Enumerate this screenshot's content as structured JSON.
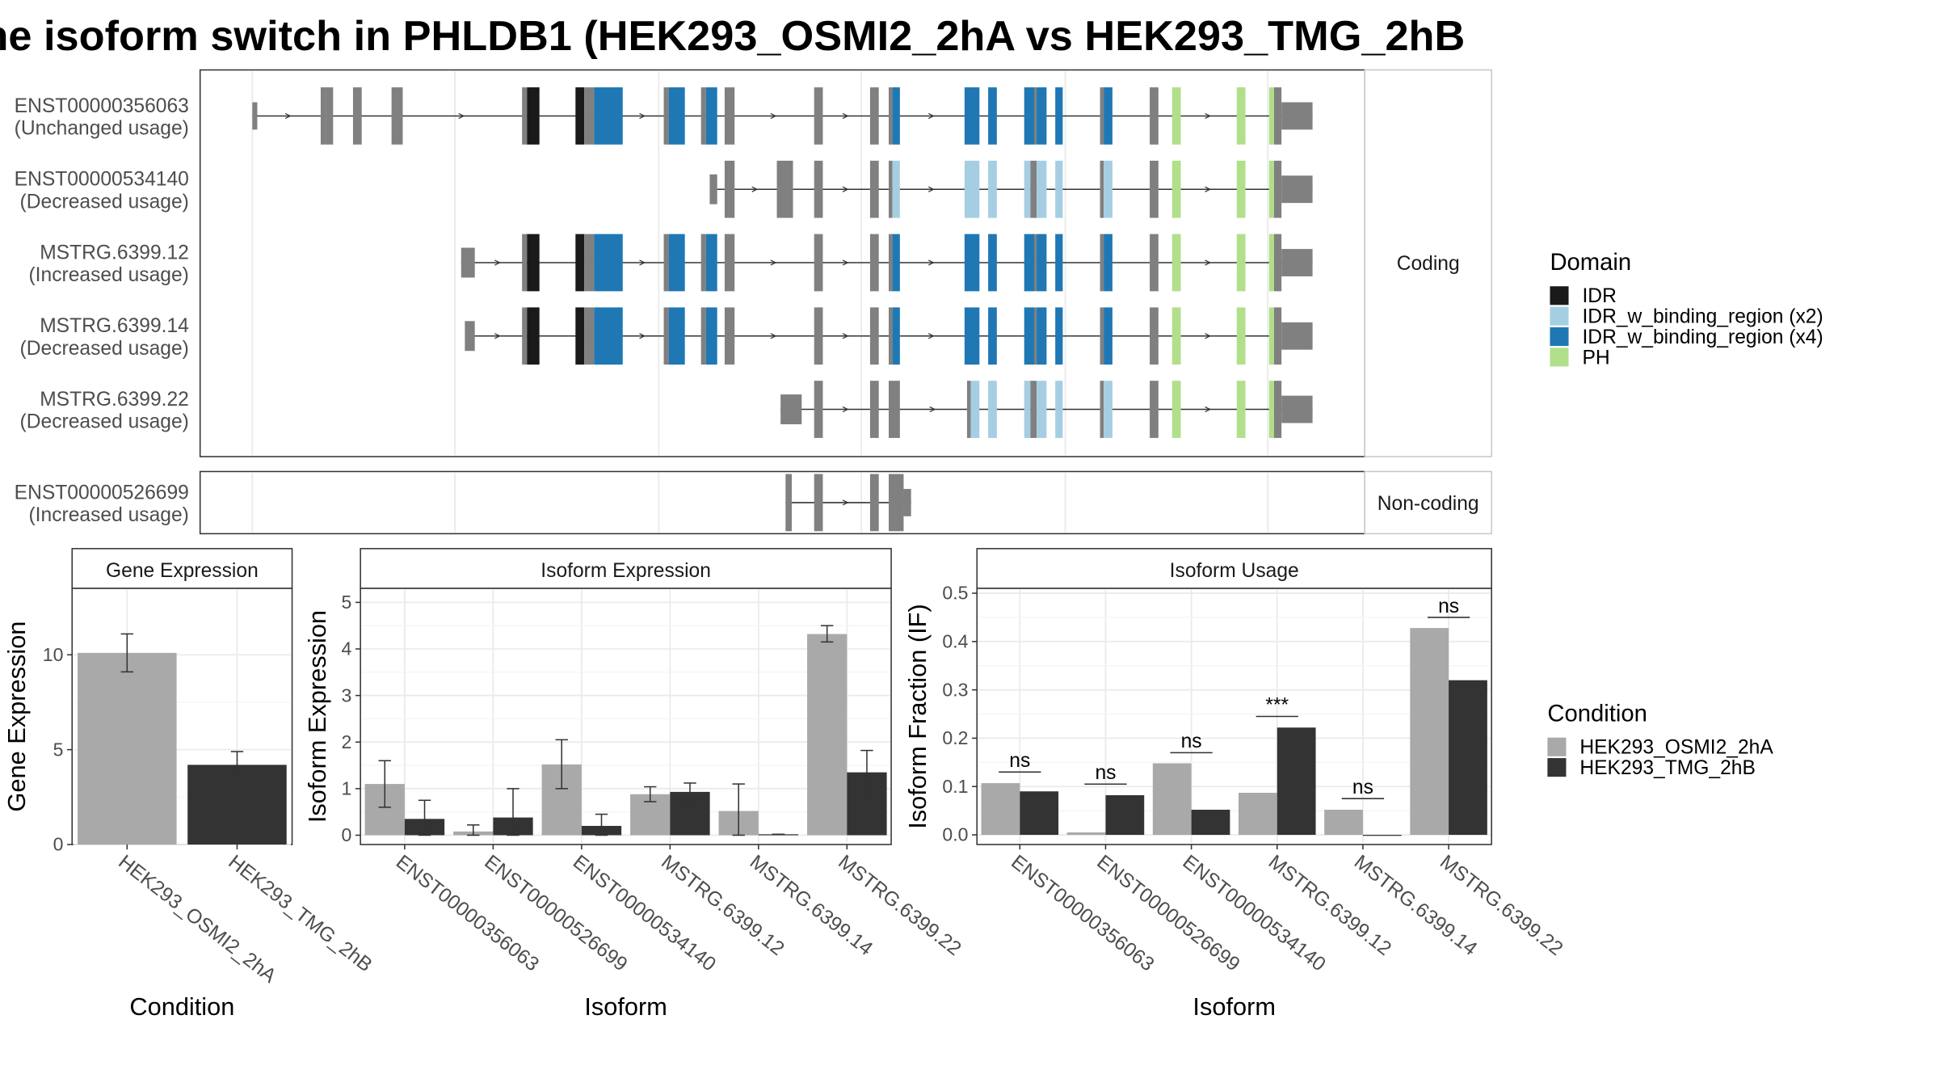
{
  "title": "ne isoform switch in PHLDB1 (HEK293_OSMI2_2hA vs HEK293_TMG_2hB",
  "colors": {
    "IDR": "#1a1a1a",
    "IDR_w_binding_region (x2)": "#a6cee3",
    "IDR_w_binding_region (x4)": "#1f78b4",
    "PH": "#b2df8a",
    "exon": "#808080",
    "cond1": "#a9a9a9",
    "cond2": "#333333",
    "grid": "#ebebeb",
    "strip_text": "#1a1a1a"
  },
  "domain_legend": {
    "title": "Domain",
    "items": [
      "IDR",
      "IDR_w_binding_region (x2)",
      "IDR_w_binding_region (x4)",
      "PH"
    ]
  },
  "condition_legend": {
    "title": "Condition",
    "items": [
      "HEK293_OSMI2_2hA",
      "HEK293_TMG_2hB"
    ]
  },
  "structure": {
    "coding_label": "Coding",
    "noncoding_label": "Non-coding",
    "coding": [
      {
        "name": "ENST00000356063",
        "status": "(Unchanged usage)",
        "exons": [
          [
            203,
            207
          ],
          [
            258,
            262
          ],
          [
            262,
            268
          ],
          [
            284,
            291
          ],
          [
            315,
            324
          ],
          [
            420,
            424
          ],
          [
            424,
            434
          ],
          [
            463,
            470
          ],
          [
            470,
            478
          ],
          [
            478,
            501
          ],
          [
            534,
            538
          ],
          [
            538,
            551
          ],
          [
            564,
            568
          ],
          [
            568,
            577
          ],
          [
            583,
            591
          ],
          [
            655,
            662
          ],
          [
            700,
            707
          ],
          [
            715,
            718
          ],
          [
            718,
            724
          ],
          [
            776,
            788
          ],
          [
            795,
            802
          ],
          [
            824,
            832
          ],
          [
            832,
            834
          ],
          [
            834,
            842
          ],
          [
            849,
            855
          ],
          [
            885,
            888
          ],
          [
            888,
            895
          ],
          [
            925,
            932
          ],
          [
            943,
            950
          ],
          [
            995,
            1002
          ],
          [
            1021,
            1025
          ],
          [
            1025,
            1031
          ],
          [
            1031,
            1056
          ]
        ],
        "heights": {
          "32": "tall_utr"
        }
      },
      {
        "name": "ENST00000534140",
        "status": "(Decreased usage)",
        "exons": [
          [
            571,
            577
          ],
          [
            583,
            586
          ],
          [
            586,
            591
          ],
          [
            625,
            638
          ],
          [
            655,
            662
          ],
          [
            700,
            707
          ],
          [
            715,
            718
          ],
          [
            718,
            724
          ],
          [
            776,
            788
          ],
          [
            795,
            802
          ],
          [
            824,
            829
          ],
          [
            829,
            834
          ],
          [
            834,
            842
          ],
          [
            849,
            855
          ],
          [
            885,
            888
          ],
          [
            888,
            895
          ],
          [
            925,
            932
          ],
          [
            943,
            950
          ],
          [
            995,
            1002
          ],
          [
            1021,
            1025
          ],
          [
            1025,
            1031
          ],
          [
            1031,
            1056
          ]
        ]
      },
      {
        "name": "MSTRG.6399.12",
        "status": "(Increased usage)",
        "exons": [
          [
            371,
            382
          ],
          [
            420,
            424
          ],
          [
            424,
            434
          ],
          [
            463,
            470
          ],
          [
            470,
            478
          ],
          [
            478,
            501
          ],
          [
            534,
            538
          ],
          [
            538,
            551
          ],
          [
            564,
            568
          ],
          [
            568,
            577
          ],
          [
            583,
            591
          ],
          [
            655,
            662
          ],
          [
            700,
            707
          ],
          [
            715,
            718
          ],
          [
            718,
            724
          ],
          [
            776,
            788
          ],
          [
            795,
            802
          ],
          [
            824,
            832
          ],
          [
            832,
            834
          ],
          [
            834,
            842
          ],
          [
            849,
            855
          ],
          [
            885,
            888
          ],
          [
            888,
            895
          ],
          [
            925,
            932
          ],
          [
            943,
            950
          ],
          [
            995,
            1002
          ],
          [
            1021,
            1025
          ],
          [
            1025,
            1031
          ],
          [
            1031,
            1056
          ]
        ]
      },
      {
        "name": "MSTRG.6399.14",
        "status": "(Decreased usage)",
        "exons": [
          [
            374,
            382
          ],
          [
            420,
            424
          ],
          [
            424,
            434
          ],
          [
            463,
            470
          ],
          [
            470,
            478
          ],
          [
            478,
            501
          ],
          [
            534,
            538
          ],
          [
            538,
            551
          ],
          [
            564,
            568
          ],
          [
            568,
            577
          ],
          [
            583,
            591
          ],
          [
            655,
            662
          ],
          [
            700,
            707
          ],
          [
            715,
            718
          ],
          [
            718,
            724
          ],
          [
            776,
            788
          ],
          [
            795,
            802
          ],
          [
            824,
            832
          ],
          [
            832,
            834
          ],
          [
            834,
            842
          ],
          [
            849,
            855
          ],
          [
            885,
            888
          ],
          [
            888,
            895
          ],
          [
            925,
            932
          ],
          [
            943,
            950
          ],
          [
            995,
            1002
          ],
          [
            1021,
            1025
          ],
          [
            1025,
            1031
          ],
          [
            1031,
            1056
          ]
        ]
      },
      {
        "name": "MSTRG.6399.22",
        "status": "(Decreased usage)",
        "exons": [
          [
            628,
            645
          ],
          [
            655,
            662
          ],
          [
            700,
            707
          ],
          [
            715,
            724
          ],
          [
            778,
            781
          ],
          [
            781,
            788
          ],
          [
            795,
            802
          ],
          [
            824,
            829
          ],
          [
            829,
            834
          ],
          [
            834,
            842
          ],
          [
            849,
            855
          ],
          [
            885,
            888
          ],
          [
            888,
            895
          ],
          [
            925,
            932
          ],
          [
            943,
            950
          ],
          [
            995,
            1002
          ],
          [
            1021,
            1025
          ],
          [
            1025,
            1031
          ],
          [
            1031,
            1056
          ]
        ]
      }
    ],
    "noncoding": [
      {
        "name": "ENST00000526699",
        "status": "(Increased usage)",
        "exons": [
          [
            632,
            637
          ],
          [
            655,
            662
          ],
          [
            700,
            707
          ],
          [
            715,
            727
          ],
          [
            727,
            733
          ]
        ]
      }
    ]
  },
  "chart_data": [
    {
      "type": "bar",
      "title": "Gene Expression",
      "xlabel": "Condition",
      "ylabel": "Gene Expression",
      "ylim": [
        0,
        13.5
      ],
      "yticks": [
        0,
        5,
        10
      ],
      "categories": [
        "HEK293_OSMI2_2hA",
        "HEK293_TMG_2hB"
      ],
      "values": [
        10.1,
        4.2
      ],
      "errors": [
        [
          9.1,
          11.1
        ],
        [
          3.6,
          4.9
        ]
      ]
    },
    {
      "type": "bar",
      "title": "Isoform Expression",
      "xlabel": "Isoform",
      "ylabel": "Isoform Expression",
      "ylim": [
        -0.2,
        5.3
      ],
      "yticks": [
        0,
        1,
        2,
        3,
        4,
        5
      ],
      "categories": [
        "ENST00000356063",
        "ENST00000526699",
        "ENST00000534140",
        "MSTRG.6399.12",
        "MSTRG.6399.14",
        "MSTRG.6399.22"
      ],
      "series": [
        {
          "name": "HEK293_OSMI2_2hA",
          "values": [
            1.1,
            0.08,
            1.52,
            0.88,
            0.52,
            4.32
          ],
          "errors": [
            [
              0.6,
              1.6
            ],
            [
              0.0,
              0.22
            ],
            [
              1.0,
              2.05
            ],
            [
              0.72,
              1.04
            ],
            [
              0.0,
              1.1
            ],
            [
              4.15,
              4.5
            ]
          ]
        },
        {
          "name": "HEK293_TMG_2hB",
          "values": [
            0.35,
            0.38,
            0.2,
            0.93,
            0.02,
            1.35
          ],
          "errors": [
            [
              0.0,
              0.75
            ],
            [
              0.0,
              1.0
            ],
            [
              0.0,
              0.45
            ],
            [
              0.75,
              1.12
            ],
            [
              0.02,
              0.02
            ],
            [
              0.9,
              1.82
            ]
          ]
        }
      ]
    },
    {
      "type": "bar",
      "title": "Isoform Usage",
      "xlabel": "Isoform",
      "ylabel": "Isoform Fraction (IF)",
      "ylim": [
        -0.02,
        0.51
      ],
      "yticks": [
        0.0,
        0.1,
        0.2,
        0.3,
        0.4,
        0.5
      ],
      "categories": [
        "ENST00000356063",
        "ENST00000526699",
        "ENST00000534140",
        "MSTRG.6399.12",
        "MSTRG.6399.14",
        "MSTRG.6399.22"
      ],
      "series": [
        {
          "name": "HEK293_OSMI2_2hA",
          "values": [
            0.107,
            0.005,
            0.148,
            0.087,
            0.052,
            0.428
          ]
        },
        {
          "name": "HEK293_TMG_2hB",
          "values": [
            0.09,
            0.082,
            0.052,
            0.222,
            0.0,
            0.32
          ]
        }
      ],
      "significance": [
        "ns",
        "ns",
        "ns",
        "***",
        "ns",
        "ns"
      ],
      "sig_heights": [
        0.13,
        0.105,
        0.17,
        0.245,
        0.075,
        0.45
      ]
    }
  ]
}
